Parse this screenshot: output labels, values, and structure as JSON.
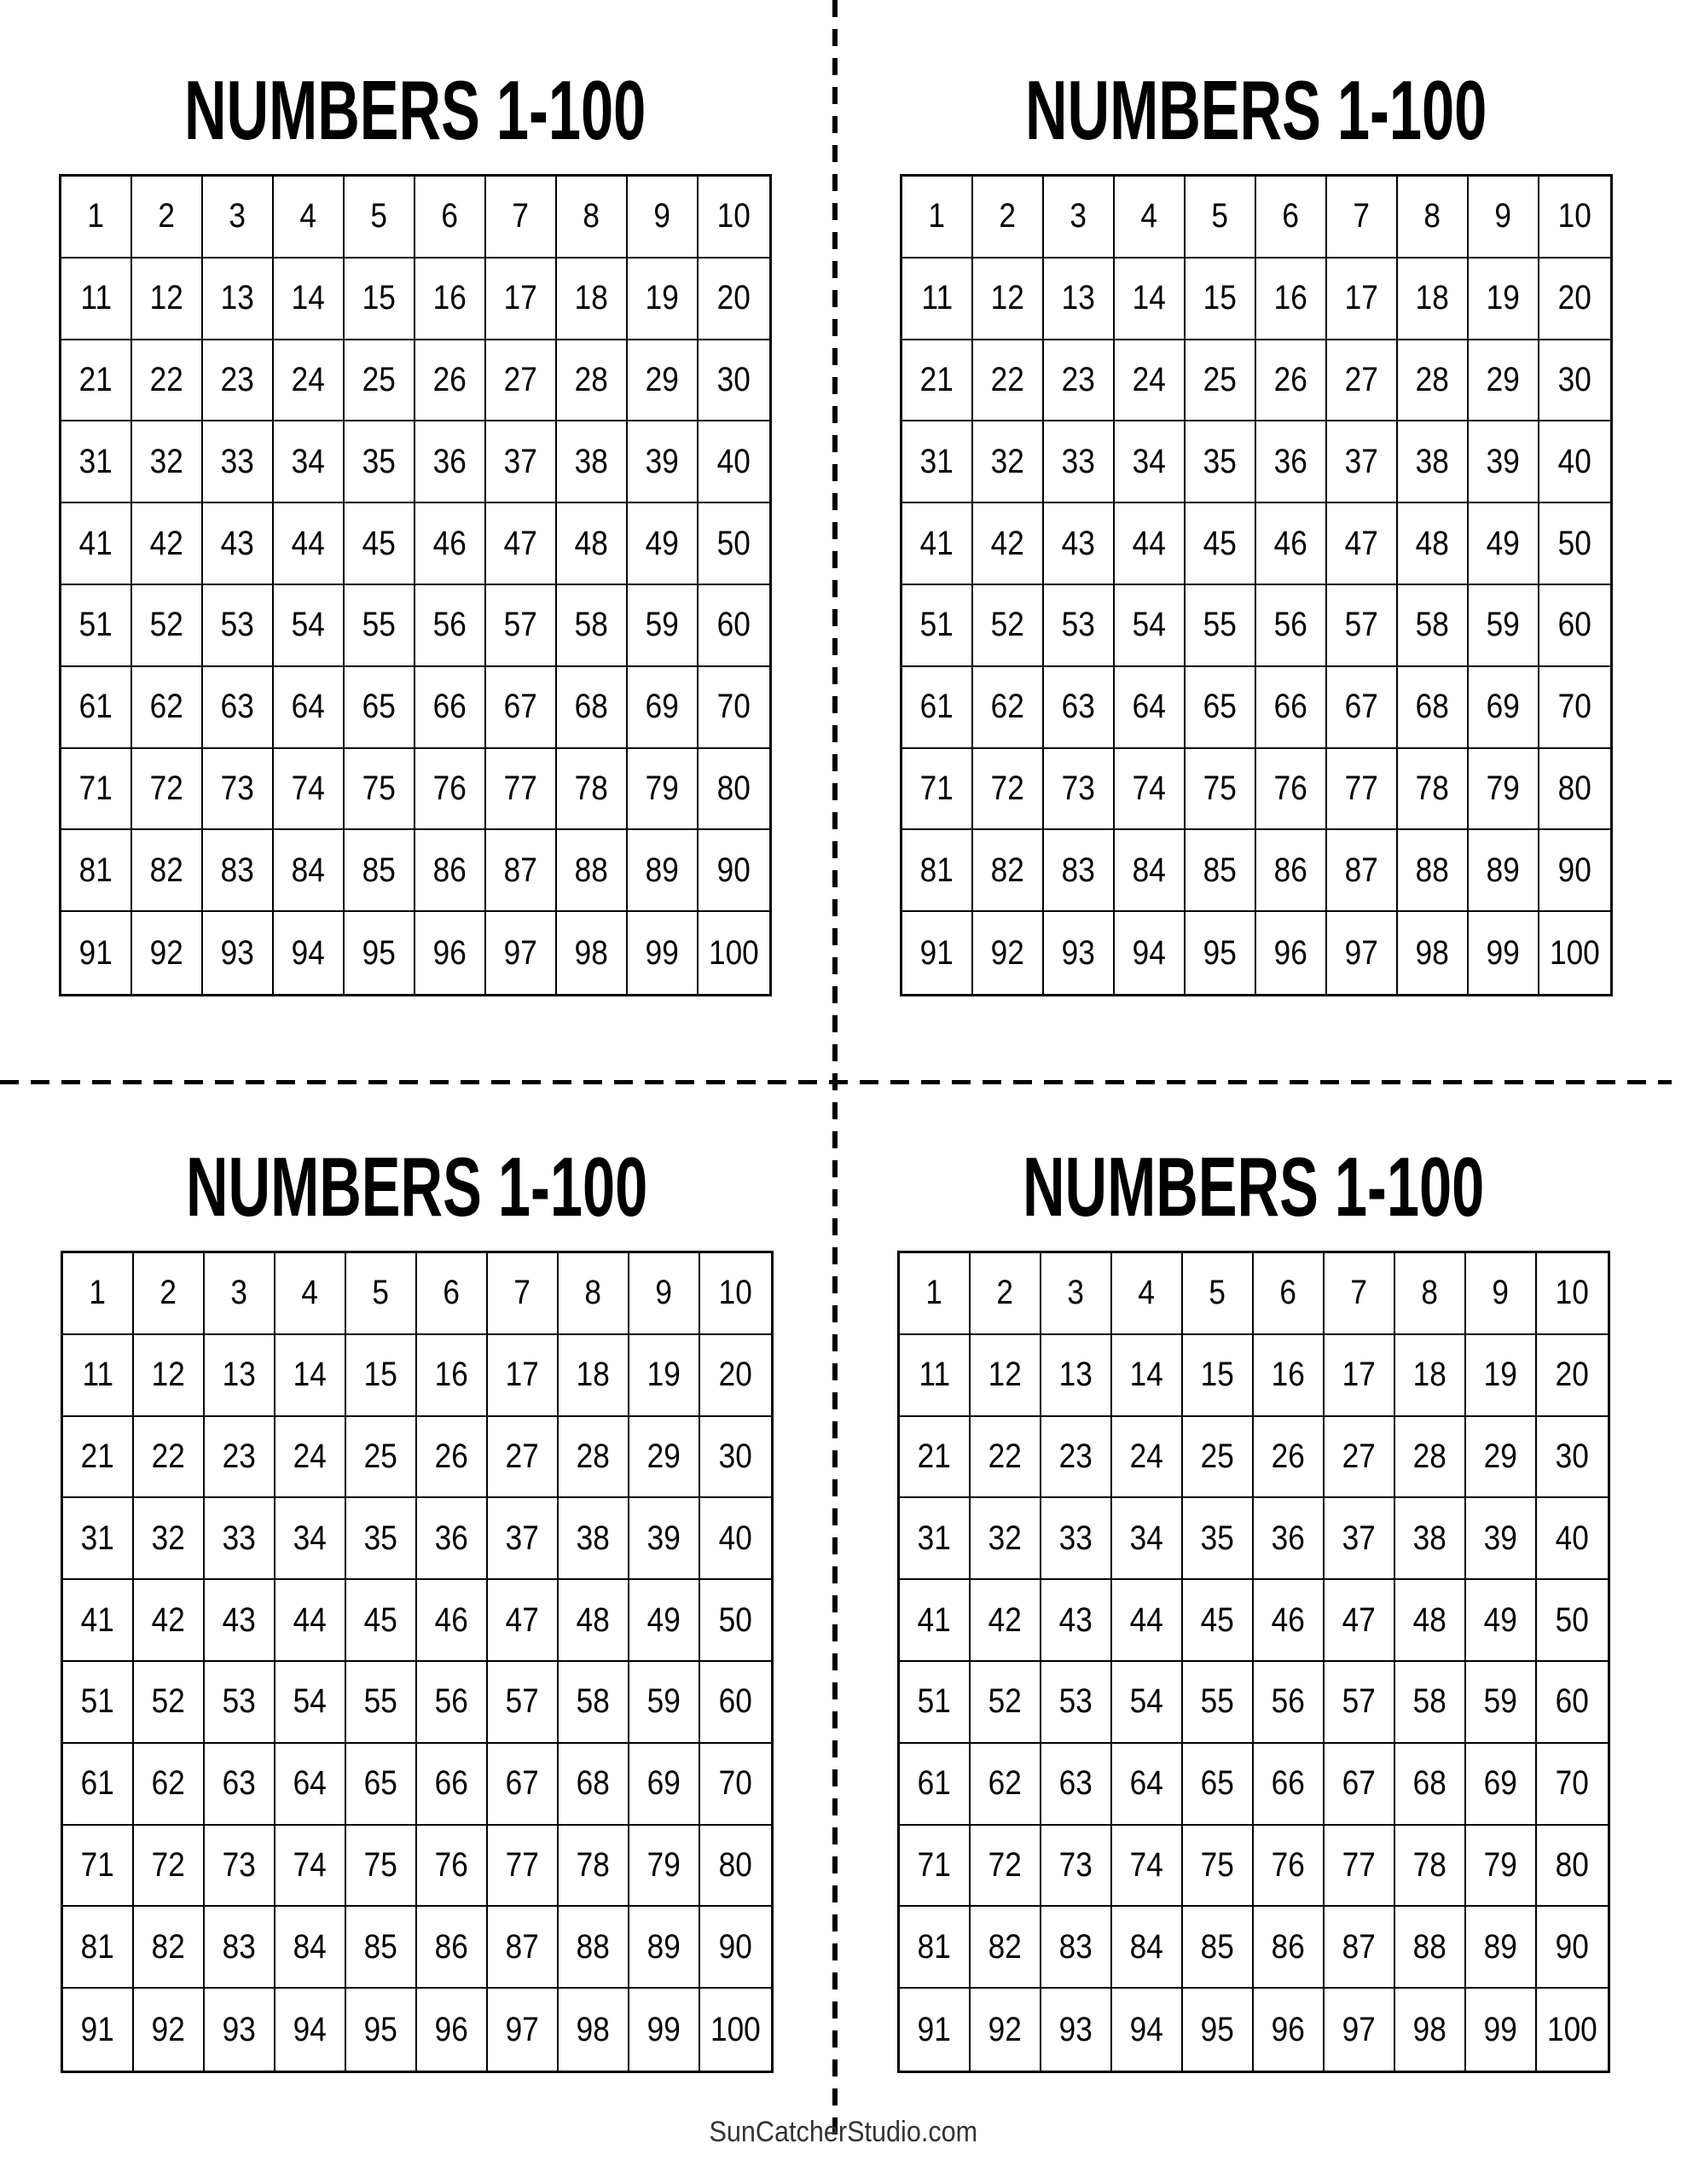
{
  "panels": [
    {
      "title": "NUMBERS 1-100"
    },
    {
      "title": "NUMBERS 1-100"
    },
    {
      "title": "NUMBERS 1-100"
    },
    {
      "title": "NUMBERS 1-100"
    }
  ],
  "numbers": [
    "1",
    "2",
    "3",
    "4",
    "5",
    "6",
    "7",
    "8",
    "9",
    "10",
    "11",
    "12",
    "13",
    "14",
    "15",
    "16",
    "17",
    "18",
    "19",
    "20",
    "21",
    "22",
    "23",
    "24",
    "25",
    "26",
    "27",
    "28",
    "29",
    "30",
    "31",
    "32",
    "33",
    "34",
    "35",
    "36",
    "37",
    "38",
    "39",
    "40",
    "41",
    "42",
    "43",
    "44",
    "45",
    "46",
    "47",
    "48",
    "49",
    "50",
    "51",
    "52",
    "53",
    "54",
    "55",
    "56",
    "57",
    "58",
    "59",
    "60",
    "61",
    "62",
    "63",
    "64",
    "65",
    "66",
    "67",
    "68",
    "69",
    "70",
    "71",
    "72",
    "73",
    "74",
    "75",
    "76",
    "77",
    "78",
    "79",
    "80",
    "81",
    "82",
    "83",
    "84",
    "85",
    "86",
    "87",
    "88",
    "89",
    "90",
    "91",
    "92",
    "93",
    "94",
    "95",
    "96",
    "97",
    "98",
    "99",
    "100"
  ],
  "footer": "SunCatcherStudio.com"
}
